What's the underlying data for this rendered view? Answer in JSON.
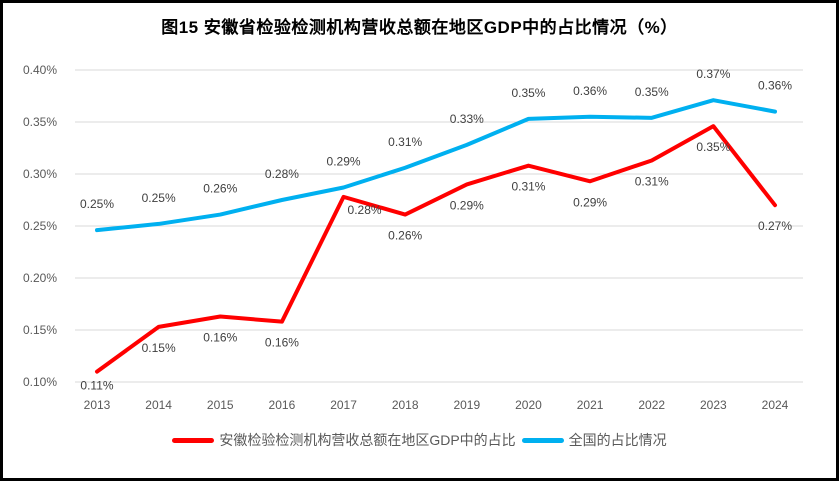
{
  "chart_data": {
    "type": "line",
    "title": "图15 安徽省检验检测机构营收总额在地区GDP中的占比情况（%）",
    "categories": [
      "2013",
      "2014",
      "2015",
      "2016",
      "2017",
      "2018",
      "2019",
      "2020",
      "2021",
      "2022",
      "2023",
      "2024"
    ],
    "y_axis": {
      "tick_labels": [
        "0.10%",
        "0.15%",
        "0.20%",
        "0.25%",
        "0.30%",
        "0.35%",
        "0.40%"
      ],
      "min": 0.1,
      "max": 0.4,
      "step": 0.05,
      "unit": "%"
    },
    "grid": true,
    "legend_position": "bottom",
    "series": [
      {
        "id": "anhui",
        "name": "安徽检验检测机构营收总额在地区GDP中的占比",
        "color": "#FF0000",
        "values": [
          0.11,
          0.15,
          0.16,
          0.16,
          0.28,
          0.26,
          0.29,
          0.31,
          0.29,
          0.31,
          0.35,
          0.27
        ],
        "labels": [
          "0.11%",
          "0.15%",
          "0.16%",
          "0.16%",
          "0.28%",
          "0.26%",
          "0.29%",
          "0.31%",
          "0.29%",
          "0.31%",
          "0.35%",
          "0.27%"
        ],
        "plot_values": [
          0.11,
          0.153,
          0.163,
          0.158,
          0.278,
          0.261,
          0.29,
          0.308,
          0.293,
          0.313,
          0.346,
          0.27
        ],
        "label_placement": "below",
        "label_offsets": {
          "0": [
            0,
            14
          ],
          "4": [
            21,
            13
          ]
        }
      },
      {
        "id": "national",
        "name": "全国的占比情况",
        "color": "#00B0F0",
        "values": [
          0.25,
          0.25,
          0.26,
          0.28,
          0.29,
          0.31,
          0.33,
          0.35,
          0.36,
          0.35,
          0.37,
          0.36
        ],
        "labels": [
          "0.25%",
          "0.25%",
          "0.26%",
          "0.28%",
          "0.29%",
          "0.31%",
          "0.33%",
          "0.35%",
          "0.36%",
          "0.35%",
          "0.37%",
          "0.36%"
        ],
        "plot_values": [
          0.246,
          0.252,
          0.261,
          0.275,
          0.287,
          0.306,
          0.328,
          0.353,
          0.355,
          0.354,
          0.371,
          0.36
        ],
        "label_placement": "above",
        "label_offsets": {}
      }
    ]
  },
  "colors": {
    "grid": "#D9D9D9",
    "axis_text": "#595959",
    "data_label_text": "#404040",
    "frame_border": "#000000",
    "background": "#FFFFFF"
  }
}
